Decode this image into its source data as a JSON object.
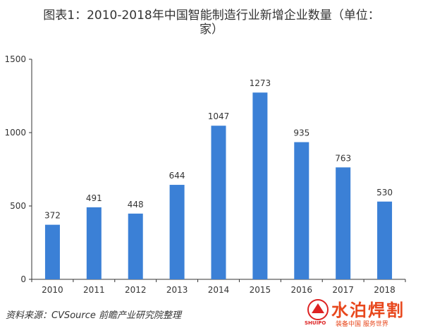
{
  "chart_data": {
    "type": "bar",
    "title_line1": "图表1：2010-2018年中国智能制造行业新增企业数量（单位：",
    "title_line2": "家）",
    "categories": [
      "2010",
      "2011",
      "2012",
      "2013",
      "2014",
      "2015",
      "2016",
      "2017",
      "2018"
    ],
    "values": [
      372,
      491,
      448,
      644,
      1047,
      1273,
      935,
      763,
      530
    ],
    "ylim": [
      0,
      1500
    ],
    "yticks": [
      0,
      500,
      1000,
      1500
    ],
    "grid": false,
    "bar_color": "#3b80d6",
    "data_labels": true
  },
  "source": "资料来源：CVSource 前瞻产业研究院整理",
  "logo": {
    "name": "水泊焊割",
    "en": "SHUIPO",
    "slogan": "装备中国 服务世界"
  }
}
